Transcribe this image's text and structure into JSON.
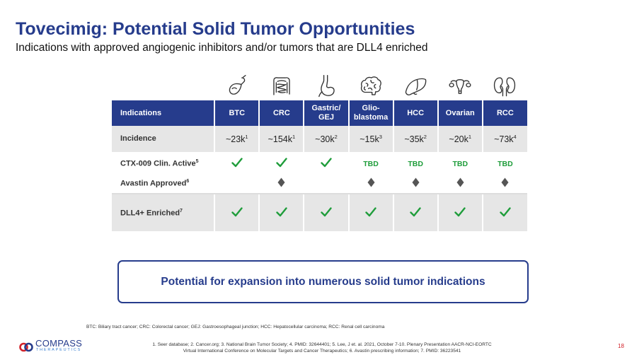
{
  "title": "Tovecimig: Potential Solid Tumor Opportunities",
  "subtitle": "Indications with approved angiogenic inhibitors and/or tumors that are DLL4 enriched",
  "organ_icons": [
    "gallbladder-icon",
    "intestine-icon",
    "stomach-icon",
    "brain-icon",
    "liver-icon",
    "uterus-icon",
    "kidneys-icon"
  ],
  "table": {
    "header_first": "Indications",
    "columns": [
      {
        "l1": "BTC",
        "l2": ""
      },
      {
        "l1": "CRC",
        "l2": ""
      },
      {
        "l1": "Gastric/",
        "l2": "GEJ"
      },
      {
        "l1": "Glio-",
        "l2": "blastoma"
      },
      {
        "l1": "HCC",
        "l2": ""
      },
      {
        "l1": "Ovarian",
        "l2": ""
      },
      {
        "l1": "RCC",
        "l2": ""
      }
    ],
    "incidence": {
      "label": "Incidence",
      "values": [
        {
          "v": "~23k",
          "fn": "1"
        },
        {
          "v": "~154k",
          "fn": "1"
        },
        {
          "v": "~30k",
          "fn": "2"
        },
        {
          "v": "~15k",
          "fn": "3"
        },
        {
          "v": "~35k",
          "fn": "2"
        },
        {
          "v": "~20k",
          "fn": "1"
        },
        {
          "v": "~73k",
          "fn": "4"
        }
      ]
    },
    "ctx009": {
      "label": "CTX-009  Clin. Active",
      "fn": "5",
      "values": [
        "check",
        "check",
        "check",
        "TBD",
        "TBD",
        "TBD",
        "TBD"
      ]
    },
    "avastin": {
      "label": "Avastin Approved",
      "fn": "6",
      "values": [
        "",
        "diamond",
        "",
        "diamond",
        "diamond",
        "diamond",
        "diamond"
      ]
    },
    "dll4": {
      "label": "DLL4+ Enriched",
      "fn": "7",
      "values": [
        "check",
        "check",
        "check",
        "check",
        "check",
        "check",
        "check"
      ]
    }
  },
  "callout": "Potential for expansion into numerous solid tumor indications",
  "abbreviations": "BTC: Biliary tract cancer; CRC: Colorectal cancer; GEJ: Gastroesophageal junction; HCC: Hepatocellular carcinoma; RCC: Renal cell carcinoma",
  "references_line1": "1. Seer database;  2. Cancer.org;  3. National Brain Tumor Society;  4. PMID: 32644401;  5. Lee, J et. al. 2021, October 7-10. Plenary Presentation AACR-NCI-EORTC",
  "references_line2": "Virtual International Conference on Molecular Targets and Cancer Therapeutics;  6. Avastin prescribing information;  7. PMID: 36223541",
  "logo": {
    "name": "COMPASS",
    "tagline": "THERAPEUTICS"
  },
  "page_number": "18",
  "colors": {
    "navy": "#263c8c",
    "green": "#1f9d3b",
    "marker": "#555555",
    "page_number": "#d2232a"
  }
}
